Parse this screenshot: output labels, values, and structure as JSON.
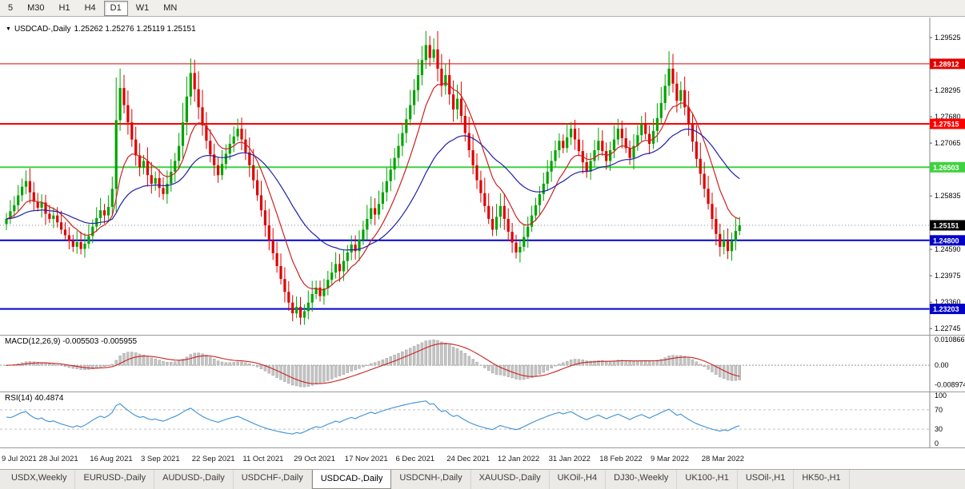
{
  "toolbar": {
    "timeframes": [
      {
        "label": "5",
        "active": false
      },
      {
        "label": "M30",
        "active": false
      },
      {
        "label": "H1",
        "active": false
      },
      {
        "label": "H4",
        "active": false
      },
      {
        "label": "D1",
        "active": true
      },
      {
        "label": "W1",
        "active": false
      },
      {
        "label": "MN",
        "active": false
      }
    ]
  },
  "chart_header": {
    "dropdown_icon": "▼",
    "symbol": "USDCAD-,Daily",
    "ohlc": "1.25262 1.25276 1.25119 1.25151"
  },
  "chart_data": {
    "type": "candlestick",
    "symbol": "USDCAD-",
    "timeframe": "Daily",
    "title": "USDCAD-,Daily",
    "ohlc_display": {
      "open": "1.25262",
      "high": "1.25276",
      "low": "1.25119",
      "close": "1.25151"
    },
    "x_labels": [
      "9 Jul 2021",
      "28 Jul 2021",
      "16 Aug 2021",
      "3 Sep 2021",
      "22 Sep 2021",
      "11 Oct 2021",
      "29 Oct 2021",
      "17 Nov 2021",
      "6 Dec 2021",
      "24 Dec 2021",
      "12 Jan 2022",
      "31 Jan 2022",
      "18 Feb 2022",
      "9 Mar 2022",
      "28 Mar 2022"
    ],
    "label_start_index": 1,
    "label_every": 13,
    "bar_step": 4.9,
    "y_ticks": [
      "1.29525",
      "1.28295",
      "1.27680",
      "1.27065",
      "1.26450",
      "1.25835",
      "1.25220",
      "1.24590",
      "1.23975",
      "1.23360",
      "1.22745"
    ],
    "y_range": [
      1.226,
      1.2999
    ],
    "closes": [
      1.253,
      1.2548,
      1.2562,
      1.2585,
      1.2605,
      1.2618,
      1.2592,
      1.257,
      1.2556,
      1.2568,
      1.2542,
      1.253,
      1.2538,
      1.2522,
      1.2505,
      1.2492,
      1.2478,
      1.2465,
      1.2476,
      1.246,
      1.2472,
      1.249,
      1.2512,
      1.2532,
      1.255,
      1.2538,
      1.2558,
      1.26,
      1.276,
      1.2835,
      1.2795,
      1.2755,
      1.2715,
      1.2678,
      1.265,
      1.2665,
      1.2632,
      1.2612,
      1.2625,
      1.2602,
      1.2588,
      1.2612,
      1.264,
      1.2665,
      1.27,
      1.2755,
      1.2815,
      1.287,
      1.2832,
      1.279,
      1.2748,
      1.2712,
      1.268,
      1.2655,
      1.2632,
      1.2658,
      1.2682,
      1.2705,
      1.2722,
      1.274,
      1.2715,
      1.2685,
      1.2655,
      1.262,
      1.2585,
      1.255,
      1.2515,
      1.248,
      1.245,
      1.242,
      1.239,
      1.236,
      1.2335,
      1.231,
      1.2325,
      1.23,
      1.2315,
      1.2335,
      1.2355,
      1.237,
      1.235,
      1.2368,
      1.2388,
      1.2405,
      1.2425,
      1.2408,
      1.2432,
      1.2452,
      1.247,
      1.2455,
      1.2482,
      1.2505,
      1.253,
      1.2555,
      1.254,
      1.2565,
      1.2592,
      1.2618,
      1.2645,
      1.2672,
      1.27,
      1.273,
      1.2762,
      1.2795,
      1.283,
      1.2865,
      1.29,
      1.2935,
      1.2905,
      1.2925,
      1.288,
      1.284,
      1.2865,
      1.282,
      1.2785,
      1.281,
      1.277,
      1.273,
      1.269,
      1.2655,
      1.262,
      1.259,
      1.256,
      1.253,
      1.2505,
      1.2535,
      1.256,
      1.253,
      1.25,
      1.2475,
      1.2452,
      1.2465,
      1.2488,
      1.2512,
      1.2538,
      1.2562,
      1.2588,
      1.2612,
      1.264,
      1.2665,
      1.269,
      1.2712,
      1.2695,
      1.272,
      1.274,
      1.2715,
      1.2688,
      1.2662,
      1.264,
      1.2665,
      1.269,
      1.2712,
      1.2688,
      1.2665,
      1.269,
      1.2715,
      1.274,
      1.2718,
      1.2695,
      1.2672,
      1.27,
      1.2725,
      1.275,
      1.2728,
      1.2705,
      1.2735,
      1.2765,
      1.28,
      1.284,
      1.288,
      1.2845,
      1.2805,
      1.283,
      1.279,
      1.275,
      1.271,
      1.267,
      1.2635,
      1.26,
      1.2565,
      1.253,
      1.2495,
      1.2465,
      1.248,
      1.2455,
      1.2478,
      1.2502,
      1.2515
    ],
    "h_lines": [
      {
        "price": 1.28912,
        "label": "1.28912",
        "color": "#e00000",
        "width": 1
      },
      {
        "price": 1.27515,
        "label": "1.27515",
        "color": "#ff0000",
        "width": 2
      },
      {
        "price": 1.26503,
        "label": "1.26503",
        "color": "#3fd23f",
        "width": 2
      },
      {
        "price": 1.248,
        "label": "1.24800",
        "color": "#0202c8",
        "width": 2
      },
      {
        "price": 1.23203,
        "label": "1.23203",
        "color": "#0202c8",
        "width": 2
      }
    ],
    "current_price": {
      "value": 1.25151,
      "label": "1.25151",
      "color": "#000000"
    },
    "up_color": "#00a400",
    "down_color": "#e00000",
    "ma_fast_color": "#cc2222",
    "ma_slow_color": "#2020a8",
    "indicators": {
      "macd": {
        "label": "MACD(12,26,9)",
        "values_text": "-0.005503 -0.005955",
        "axis": [
          "0.010866",
          "0.00",
          "-0.008974"
        ],
        "hist_color": "#c4c4c4",
        "hist_stroke": "#989898",
        "signal_color": "#cc2222"
      },
      "rsi": {
        "label": "RSI(14)",
        "value_text": "40.4874",
        "axis": [
          "100",
          "70",
          "30",
          "0"
        ],
        "levels": [
          70,
          30
        ],
        "line_color": "#3b8fd4"
      }
    }
  },
  "tabs": [
    {
      "label": "USDX,Weekly",
      "active": false
    },
    {
      "label": "EURUSD-,Daily",
      "active": false
    },
    {
      "label": "AUDUSD-,Daily",
      "active": false
    },
    {
      "label": "USDCHF-,Daily",
      "active": false
    },
    {
      "label": "USDCAD-,Daily",
      "active": true
    },
    {
      "label": "USDCNH-,Daily",
      "active": false
    },
    {
      "label": "XAUUSD-,Daily",
      "active": false
    },
    {
      "label": "UKOil-,H4",
      "active": false
    },
    {
      "label": "DJ30-,Weekly",
      "active": false
    },
    {
      "label": "UK100-,H1",
      "active": false
    },
    {
      "label": "USOil-,H1",
      "active": false
    },
    {
      "label": "HK50-,H1",
      "active": false
    }
  ]
}
